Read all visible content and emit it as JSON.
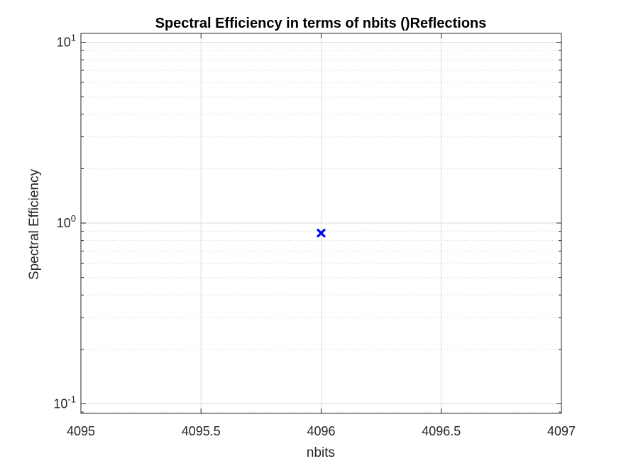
{
  "chart_data": {
    "type": "scatter",
    "title": "Spectral Efficiency in terms of nbits ()Reflections",
    "xlabel": "nbits",
    "ylabel": "Spectral Efficiency",
    "xlim": [
      4095,
      4097
    ],
    "ylim": [
      0.0885,
      11.2
    ],
    "yscale": "log",
    "grid": true,
    "x_ticks": [
      {
        "value": 4095,
        "label": "4095"
      },
      {
        "value": 4095.5,
        "label": "4095.5"
      },
      {
        "value": 4096,
        "label": "4096"
      },
      {
        "value": 4096.5,
        "label": "4096.5"
      },
      {
        "value": 4097,
        "label": "4097"
      }
    ],
    "y_ticks": [
      {
        "value": 0.1,
        "mantissa": "10",
        "exponent": "-1"
      },
      {
        "value": 1,
        "mantissa": "10",
        "exponent": "0"
      },
      {
        "value": 10,
        "mantissa": "10",
        "exponent": "1"
      }
    ],
    "series": [
      {
        "x": [
          4096
        ],
        "y": [
          0.88
        ],
        "marker": "x",
        "color": "#0000ff"
      }
    ]
  }
}
